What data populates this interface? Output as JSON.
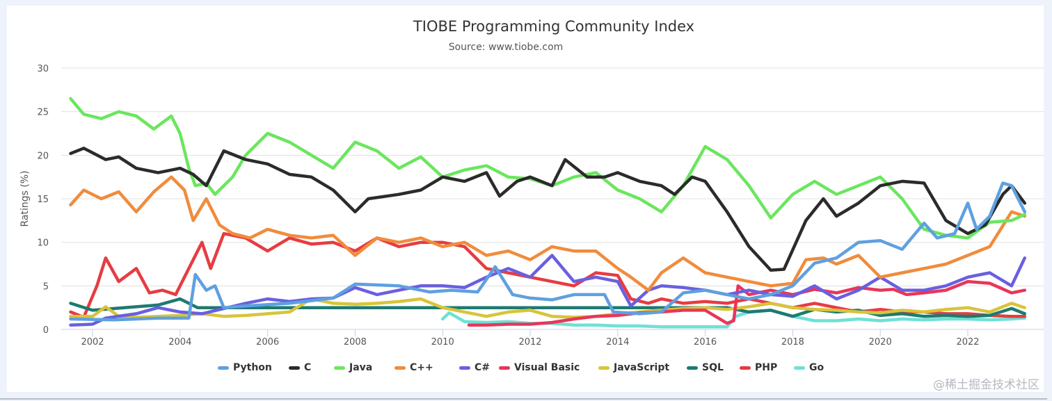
{
  "chart_data": {
    "type": "line",
    "title": "TIOBE Programming Community Index",
    "subtitle": "Source: www.tiobe.com",
    "xlabel": "",
    "ylabel": "Ratings (%)",
    "xlim": [
      2001.3,
      2023.6
    ],
    "ylim": [
      0,
      30
    ],
    "yticks": [
      0,
      5,
      10,
      15,
      20,
      25,
      30
    ],
    "xticks": [
      2002,
      2004,
      2006,
      2008,
      2010,
      2012,
      2014,
      2016,
      2018,
      2020,
      2022
    ],
    "grid": "horizontal",
    "legend_position": "bottom-center",
    "series": [
      {
        "name": "Python",
        "color": "#5fa0e0",
        "x": [
          2001.5,
          2002.5,
          2003.5,
          2004.2,
          2004.35,
          2004.6,
          2004.8,
          2005.0,
          2005.5,
          2006.5,
          2007.5,
          2008.0,
          2009.0,
          2009.7,
          2010.2,
          2010.8,
          2011.2,
          2011.6,
          2012.0,
          2012.5,
          2013.0,
          2013.7,
          2013.9,
          2014.5,
          2015.0,
          2015.5,
          2016.0,
          2016.5,
          2017.0,
          2017.5,
          2018.0,
          2018.5,
          2019.0,
          2019.5,
          2020.0,
          2020.5,
          2021.0,
          2021.3,
          2021.7,
          2022.0,
          2022.2,
          2022.5,
          2022.8,
          2023.0,
          2023.3
        ],
        "y": [
          1.2,
          1.1,
          1.3,
          1.3,
          6.3,
          4.5,
          5.0,
          2.5,
          2.7,
          3.0,
          3.6,
          5.2,
          5.0,
          4.3,
          4.5,
          4.3,
          7.2,
          4.0,
          3.6,
          3.4,
          4.0,
          4.0,
          2.0,
          1.8,
          2.0,
          4.2,
          4.5,
          4.0,
          3.5,
          4.0,
          5.0,
          7.6,
          8.2,
          10.0,
          10.2,
          9.2,
          12.2,
          10.5,
          11.0,
          14.5,
          11.5,
          13.0,
          16.8,
          16.5,
          13.5
        ]
      },
      {
        "name": "C",
        "color": "#2b2b2b",
        "x": [
          2001.5,
          2001.8,
          2002.3,
          2002.6,
          2003.0,
          2003.5,
          2004.0,
          2004.3,
          2004.6,
          2005.0,
          2005.5,
          2006.0,
          2006.5,
          2007.0,
          2007.5,
          2008.0,
          2008.3,
          2009.0,
          2009.5,
          2010.0,
          2010.5,
          2011.0,
          2011.3,
          2011.7,
          2012.0,
          2012.5,
          2012.8,
          2013.3,
          2013.7,
          2014.0,
          2014.5,
          2015.0,
          2015.3,
          2015.7,
          2016.0,
          2016.5,
          2017.0,
          2017.5,
          2017.8,
          2018.3,
          2018.7,
          2019.0,
          2019.5,
          2020.0,
          2020.5,
          2021.0,
          2021.5,
          2022.0,
          2022.4,
          2022.8,
          2023.0,
          2023.3
        ],
        "y": [
          20.2,
          20.8,
          19.5,
          19.8,
          18.5,
          18.0,
          18.5,
          17.8,
          16.5,
          20.5,
          19.5,
          19.0,
          17.8,
          17.5,
          16.0,
          13.5,
          15.0,
          15.5,
          16.0,
          17.5,
          17.0,
          18.0,
          15.3,
          17.0,
          17.5,
          16.5,
          19.5,
          17.5,
          17.5,
          18.0,
          17.0,
          16.5,
          15.5,
          17.5,
          17.0,
          13.5,
          9.5,
          6.8,
          6.9,
          12.5,
          15.0,
          13.0,
          14.5,
          16.5,
          17.0,
          16.8,
          12.5,
          11.0,
          12.0,
          15.5,
          16.5,
          14.5
        ]
      },
      {
        "name": "Java",
        "color": "#6be65e",
        "x": [
          2001.5,
          2001.8,
          2002.2,
          2002.6,
          2003.0,
          2003.4,
          2003.8,
          2004.0,
          2004.2,
          2004.35,
          2004.6,
          2004.8,
          2005.2,
          2005.5,
          2006.0,
          2006.5,
          2007.0,
          2007.5,
          2008.0,
          2008.5,
          2009.0,
          2009.5,
          2010.0,
          2010.5,
          2011.0,
          2011.5,
          2012.0,
          2012.5,
          2013.0,
          2013.5,
          2014.0,
          2014.5,
          2015.0,
          2015.5,
          2016.0,
          2016.5,
          2017.0,
          2017.5,
          2018.0,
          2018.5,
          2019.0,
          2019.5,
          2020.0,
          2020.5,
          2021.0,
          2021.5,
          2022.0,
          2022.5,
          2023.0,
          2023.3
        ],
        "y": [
          26.5,
          24.7,
          24.2,
          25.0,
          24.5,
          23.0,
          24.5,
          22.5,
          18.5,
          16.5,
          16.8,
          15.5,
          17.5,
          20.0,
          22.5,
          21.5,
          20.0,
          18.5,
          21.5,
          20.5,
          18.5,
          19.8,
          17.5,
          18.3,
          18.8,
          17.5,
          17.3,
          16.5,
          17.5,
          18.0,
          16.0,
          15.0,
          13.5,
          16.5,
          21.0,
          19.5,
          16.5,
          12.8,
          15.5,
          17.0,
          15.5,
          16.5,
          17.5,
          15.0,
          11.5,
          10.8,
          10.5,
          12.3,
          12.5,
          13.2
        ]
      },
      {
        "name": "C++",
        "color": "#f08c3c",
        "x": [
          2001.5,
          2001.8,
          2002.2,
          2002.6,
          2003.0,
          2003.4,
          2003.8,
          2004.1,
          2004.3,
          2004.6,
          2004.9,
          2005.2,
          2005.6,
          2006.0,
          2006.5,
          2007.0,
          2007.5,
          2008.0,
          2008.5,
          2009.0,
          2009.5,
          2010.0,
          2010.5,
          2011.0,
          2011.5,
          2012.0,
          2012.5,
          2013.0,
          2013.5,
          2014.0,
          2014.3,
          2014.7,
          2015.0,
          2015.5,
          2016.0,
          2016.5,
          2017.0,
          2017.5,
          2018.0,
          2018.3,
          2018.7,
          2019.0,
          2019.5,
          2020.0,
          2020.5,
          2021.0,
          2021.5,
          2022.0,
          2022.5,
          2023.0,
          2023.3
        ],
        "y": [
          14.3,
          16.0,
          15.0,
          15.8,
          13.5,
          15.8,
          17.5,
          16.0,
          12.5,
          15.0,
          12.0,
          11.0,
          10.5,
          11.5,
          10.8,
          10.5,
          10.8,
          8.5,
          10.5,
          10.0,
          10.5,
          9.5,
          10.0,
          8.5,
          9.0,
          8.0,
          9.5,
          9.0,
          9.0,
          7.0,
          6.0,
          4.5,
          6.5,
          8.2,
          6.5,
          6.0,
          5.5,
          5.0,
          5.3,
          8.0,
          8.2,
          7.5,
          8.5,
          6.0,
          6.5,
          7.0,
          7.5,
          8.5,
          9.5,
          13.5,
          13.0
        ]
      },
      {
        "name": "C#",
        "color": "#6a5fe0",
        "x": [
          2001.5,
          2002.0,
          2002.3,
          2003.0,
          2003.5,
          2004.0,
          2004.5,
          2005.0,
          2005.5,
          2006.0,
          2006.5,
          2007.0,
          2007.5,
          2008.0,
          2008.5,
          2009.0,
          2009.5,
          2010.0,
          2010.5,
          2011.0,
          2011.5,
          2012.0,
          2012.5,
          2013.0,
          2013.5,
          2014.0,
          2014.3,
          2014.7,
          2015.0,
          2015.5,
          2016.0,
          2016.5,
          2017.0,
          2017.5,
          2018.0,
          2018.5,
          2019.0,
          2019.5,
          2020.0,
          2020.5,
          2021.0,
          2021.5,
          2022.0,
          2022.5,
          2023.0,
          2023.3
        ],
        "y": [
          0.5,
          0.6,
          1.3,
          1.8,
          2.5,
          2.0,
          1.8,
          2.4,
          3.0,
          3.5,
          3.2,
          3.5,
          3.6,
          4.8,
          4.0,
          4.5,
          5.0,
          5.0,
          4.8,
          6.0,
          7.0,
          6.0,
          8.5,
          5.5,
          6.0,
          5.5,
          2.7,
          4.5,
          5.0,
          4.8,
          4.5,
          4.0,
          4.5,
          4.0,
          3.8,
          5.0,
          3.5,
          4.5,
          6.0,
          4.5,
          4.5,
          5.0,
          6.0,
          6.5,
          5.0,
          8.2
        ]
      },
      {
        "name": "Visual Basic",
        "color": "#e8365a",
        "x": [
          2010.6,
          2011.0,
          2011.5,
          2012.0,
          2012.5,
          2013.0,
          2013.5,
          2014.0,
          2014.5,
          2015.0,
          2015.5,
          2016.0,
          2016.5,
          2016.65,
          2016.75,
          2017.0,
          2017.5,
          2018.0,
          2018.5,
          2019.0,
          2019.5,
          2020.0,
          2020.3,
          2020.6,
          2021.0,
          2021.5,
          2022.0,
          2022.5,
          2023.0,
          2023.3
        ],
        "y": [
          0.5,
          0.5,
          0.6,
          0.6,
          0.8,
          1.2,
          1.5,
          1.6,
          1.9,
          2.0,
          2.2,
          2.2,
          0.7,
          1.0,
          5.0,
          4.0,
          4.5,
          4.0,
          4.6,
          4.2,
          4.8,
          4.5,
          4.6,
          4.0,
          4.2,
          4.5,
          5.5,
          5.3,
          4.2,
          4.5
        ]
      },
      {
        "name": "JavaScript",
        "color": "#d8c43a",
        "x": [
          2001.5,
          2002.0,
          2002.3,
          2002.6,
          2003.0,
          2003.5,
          2004.0,
          2004.5,
          2005.0,
          2005.5,
          2006.0,
          2006.5,
          2007.0,
          2007.5,
          2008.0,
          2008.5,
          2009.0,
          2009.5,
          2010.0,
          2010.5,
          2011.0,
          2011.5,
          2012.0,
          2012.5,
          2013.0,
          2013.5,
          2014.0,
          2014.5,
          2015.0,
          2015.5,
          2016.0,
          2016.5,
          2017.0,
          2017.5,
          2018.0,
          2018.5,
          2019.0,
          2019.5,
          2020.0,
          2020.5,
          2021.0,
          2021.5,
          2022.0,
          2022.5,
          2023.0,
          2023.3
        ],
        "y": [
          1.5,
          1.5,
          2.6,
          1.5,
          1.4,
          1.5,
          1.6,
          1.8,
          1.5,
          1.6,
          1.8,
          2.0,
          3.5,
          3.0,
          2.9,
          3.0,
          3.2,
          3.5,
          2.5,
          2.0,
          1.5,
          2.0,
          2.2,
          1.5,
          1.4,
          1.5,
          1.8,
          2.0,
          2.2,
          2.4,
          2.5,
          2.3,
          2.6,
          3.0,
          2.5,
          2.3,
          2.2,
          2.0,
          1.9,
          2.2,
          2.0,
          2.3,
          2.5,
          2.0,
          3.0,
          2.5
        ]
      },
      {
        "name": "SQL",
        "color": "#1e7a70",
        "x": [
          2001.5,
          2002.0,
          2002.5,
          2003.0,
          2003.5,
          2004.0,
          2004.4,
          2016.5,
          2017.0,
          2017.5,
          2018.0,
          2018.5,
          2019.0,
          2019.5,
          2020.0,
          2020.5,
          2021.0,
          2021.5,
          2022.0,
          2022.5,
          2023.0,
          2023.3
        ],
        "y": [
          3.0,
          2.2,
          2.4,
          2.6,
          2.8,
          3.5,
          2.5,
          2.5,
          2.0,
          2.2,
          1.5,
          2.3,
          2.0,
          2.2,
          1.6,
          1.8,
          1.5,
          1.6,
          1.5,
          1.6,
          2.4,
          1.8
        ]
      },
      {
        "name": "PHP",
        "color": "#e63c42",
        "x": [
          2001.5,
          2001.8,
          2002.1,
          2002.3,
          2002.6,
          2003.0,
          2003.3,
          2003.6,
          2003.9,
          2004.2,
          2004.5,
          2004.7,
          2005.0,
          2005.5,
          2006.0,
          2006.5,
          2007.0,
          2007.5,
          2008.0,
          2008.5,
          2009.0,
          2009.5,
          2010.0,
          2010.5,
          2011.0,
          2011.5,
          2012.0,
          2012.5,
          2013.0,
          2013.5,
          2014.0,
          2014.3,
          2014.7,
          2015.0,
          2015.5,
          2016.0,
          2016.5,
          2017.0,
          2017.5,
          2018.0,
          2018.5,
          2019.0,
          2019.5,
          2020.0,
          2020.5,
          2021.0,
          2021.5,
          2022.0,
          2022.5,
          2023.0,
          2023.3
        ],
        "y": [
          2.0,
          1.4,
          5.0,
          8.2,
          5.5,
          7.0,
          4.2,
          4.5,
          4.0,
          7.0,
          10.0,
          7.0,
          11.0,
          10.5,
          9.0,
          10.5,
          9.8,
          10.0,
          9.0,
          10.5,
          9.5,
          10.0,
          10.0,
          9.5,
          7.0,
          6.5,
          6.0,
          5.5,
          5.0,
          6.5,
          6.2,
          3.5,
          3.0,
          3.5,
          3.0,
          3.2,
          3.0,
          3.5,
          3.0,
          2.5,
          3.0,
          2.5,
          2.0,
          2.3,
          2.0,
          2.0,
          1.8,
          1.8,
          1.6,
          1.5,
          1.5
        ]
      },
      {
        "name": "Go",
        "color": "#6fe0d4",
        "x": [
          2010.0,
          2010.15,
          2010.5,
          2011.0,
          2011.5,
          2012.0,
          2012.5,
          2013.0,
          2013.5,
          2014.0,
          2014.5,
          2015.0,
          2015.5,
          2016.0,
          2016.5,
          2016.7,
          2017.0,
          2017.5,
          2018.0,
          2018.5,
          2019.0,
          2019.5,
          2020.0,
          2020.5,
          2021.0,
          2021.5,
          2022.0,
          2022.5,
          2023.0,
          2023.3
        ],
        "y": [
          1.2,
          1.9,
          0.9,
          0.8,
          0.9,
          0.7,
          0.7,
          0.5,
          0.5,
          0.4,
          0.4,
          0.3,
          0.3,
          0.3,
          0.3,
          1.5,
          2.0,
          2.2,
          1.5,
          1.0,
          1.0,
          1.2,
          1.0,
          1.2,
          1.1,
          1.2,
          1.2,
          1.1,
          1.2,
          1.3
        ]
      }
    ]
  },
  "legend": {
    "items": [
      "Python",
      "C",
      "Java",
      "C++",
      "C#",
      "Visual Basic",
      "JavaScript",
      "SQL",
      "PHP",
      "Go"
    ]
  },
  "watermark": "@稀土掘金技术社区"
}
